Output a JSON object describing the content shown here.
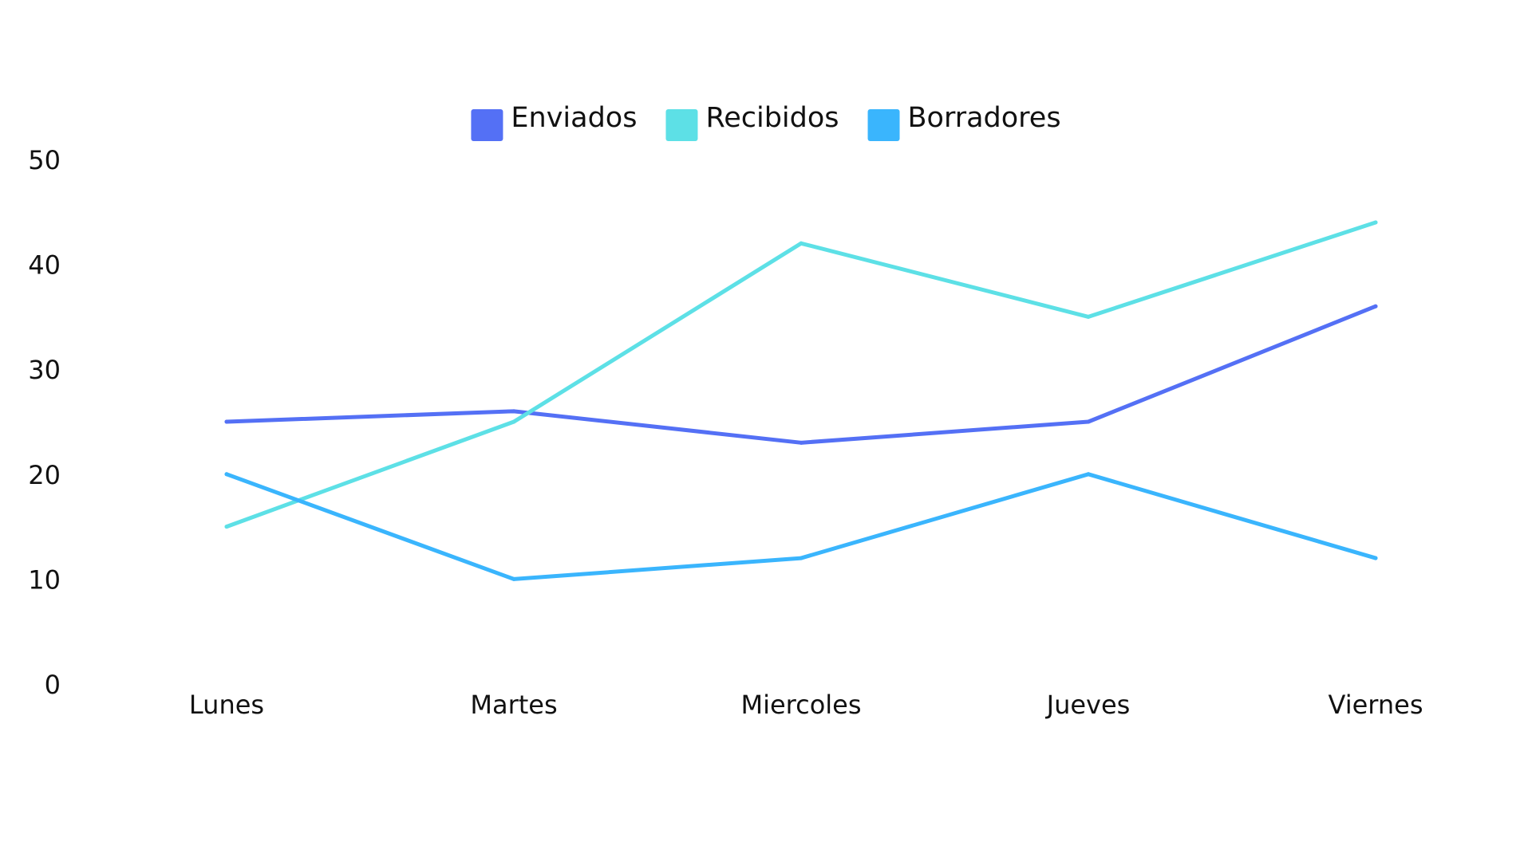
{
  "chart_data": {
    "type": "line",
    "categories": [
      "Lunes",
      "Martes",
      "Miercoles",
      "Jueves",
      "Viernes"
    ],
    "series": [
      {
        "name": "Enviados",
        "values": [
          25,
          26,
          23,
          25,
          36
        ],
        "color": "#5470f5"
      },
      {
        "name": "Recibidos",
        "values": [
          15,
          25,
          42,
          35,
          44
        ],
        "color": "#5de0e6"
      },
      {
        "name": "Borradores",
        "values": [
          20,
          10,
          12,
          20,
          12
        ],
        "color": "#3ab5fd"
      }
    ],
    "ylim": [
      0,
      50
    ],
    "yticks": [
      0,
      10,
      20,
      30,
      40,
      50
    ],
    "grid": false,
    "legend": "top-center",
    "title": "",
    "xlabel": "",
    "ylabel": ""
  }
}
